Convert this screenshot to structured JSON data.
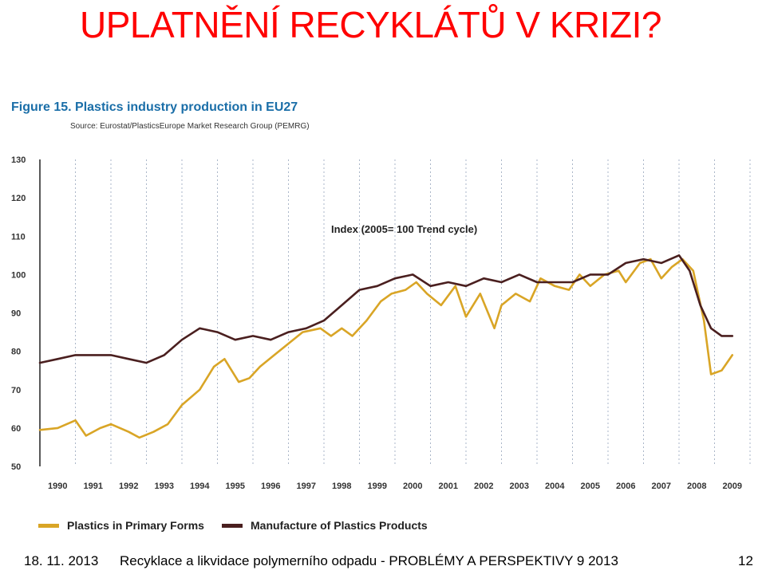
{
  "slide": {
    "title": "UPLATNĚNÍ RECYKLÁTŮ V KRIZI?"
  },
  "figure": {
    "title": "Figure 15. Plastics industry production in EU27",
    "source": "Source: Eurostat/PlasticsEurope Market Research Group (PEMRG)"
  },
  "footer": {
    "date": "18. 11. 2013",
    "text": "Recyklace a likvidace polymerního odpadu - PROBLÉMY A PERSPEKTIVY 9 2013",
    "page": "12"
  },
  "chart_data": {
    "type": "line",
    "annotation": "Index (2005= 100 Trend cycle)",
    "ylim": [
      50,
      130
    ],
    "yticks": [
      50,
      60,
      70,
      80,
      90,
      100,
      110,
      120,
      130
    ],
    "xlim": [
      1990,
      2010
    ],
    "xticks": [
      1990,
      1991,
      1992,
      1993,
      1994,
      1995,
      1996,
      1997,
      1998,
      1999,
      2000,
      2001,
      2002,
      2003,
      2004,
      2005,
      2006,
      2007,
      2008,
      2009
    ],
    "grid": "vertical dashed",
    "legend_position": "bottom",
    "colors": {
      "primary": "#d9a526",
      "manufacture": "#4a1f1f",
      "axis": "#222222"
    },
    "series": [
      {
        "name": "Plastics in Primary Forms",
        "color": "#d9a526",
        "x": [
          1990.0,
          1990.5,
          1991.0,
          1991.3,
          1991.7,
          1992.0,
          1992.5,
          1992.8,
          1993.2,
          1993.6,
          1994.0,
          1994.5,
          1994.9,
          1995.2,
          1995.6,
          1995.9,
          1996.2,
          1996.6,
          1997.0,
          1997.4,
          1997.9,
          1998.2,
          1998.5,
          1998.8,
          1999.2,
          1999.6,
          1999.9,
          2000.3,
          2000.6,
          2000.9,
          2001.3,
          2001.7,
          2002.0,
          2002.4,
          2002.8,
          2003.0,
          2003.4,
          2003.8,
          2004.1,
          2004.5,
          2004.9,
          2005.2,
          2005.5,
          2005.9,
          2006.3,
          2006.5,
          2006.9,
          2007.2,
          2007.5,
          2007.8,
          2008.1,
          2008.4,
          2008.7,
          2008.9,
          2009.2,
          2009.5
        ],
        "y": [
          59.5,
          60,
          62,
          58,
          60,
          61,
          59,
          57.5,
          59,
          61,
          66,
          70,
          76,
          78,
          72,
          73,
          76,
          79,
          82,
          85,
          86,
          84,
          86,
          84,
          88,
          93,
          95,
          96,
          98,
          95,
          92,
          97,
          89,
          95,
          86,
          92,
          95,
          93,
          99,
          97,
          96,
          100,
          97,
          100,
          101,
          98,
          103,
          104,
          99,
          102,
          104,
          101,
          88,
          74,
          75,
          79
        ]
      },
      {
        "name": "Manufacture of Plastics Products",
        "color": "#4a1f1f",
        "x": [
          1990.0,
          1990.5,
          1991.0,
          1991.5,
          1992.0,
          1992.5,
          1993.0,
          1993.5,
          1994.0,
          1994.5,
          1995.0,
          1995.5,
          1996.0,
          1996.5,
          1997.0,
          1997.5,
          1998.0,
          1998.5,
          1999.0,
          1999.5,
          2000.0,
          2000.5,
          2001.0,
          2001.5,
          2002.0,
          2002.5,
          2003.0,
          2003.5,
          2004.0,
          2004.5,
          2005.0,
          2005.5,
          2006.0,
          2006.5,
          2007.0,
          2007.5,
          2008.0,
          2008.3,
          2008.6,
          2008.9,
          2009.2,
          2009.5
        ],
        "y": [
          77,
          78,
          79,
          79,
          79,
          78,
          77,
          79,
          83,
          86,
          85,
          83,
          84,
          83,
          85,
          86,
          88,
          92,
          96,
          97,
          99,
          100,
          97,
          98,
          97,
          99,
          98,
          100,
          98,
          98,
          98,
          100,
          100,
          103,
          104,
          103,
          105,
          101,
          92,
          86,
          84,
          84
        ]
      }
    ]
  }
}
